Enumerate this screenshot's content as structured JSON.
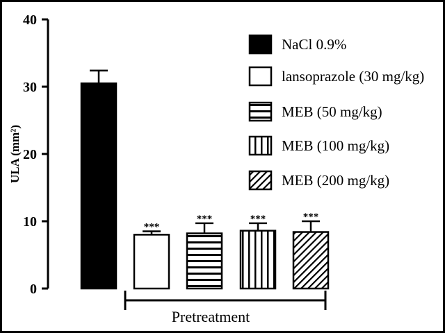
{
  "chart_data": {
    "type": "bar",
    "ylabel": "ULA (mm²)",
    "ylim": [
      0,
      40
    ],
    "yticks": [
      "0",
      "10",
      "20",
      "30",
      "40"
    ],
    "group_label": "Pretreatment",
    "series": [
      {
        "name": "NaCl 0.9%",
        "value": 30.5,
        "error": 1.9,
        "pattern": "solid",
        "annotation": ""
      },
      {
        "name": "lansoprazole (30 mg/kg)",
        "value": 8.0,
        "error": 0.5,
        "pattern": "empty",
        "annotation": "***"
      },
      {
        "name": "MEB (50 mg/kg)",
        "value": 8.2,
        "error": 1.5,
        "pattern": "horizontal",
        "annotation": "***"
      },
      {
        "name": "MEB (100 mg/kg)",
        "value": 8.6,
        "error": 1.1,
        "pattern": "vertical",
        "annotation": "***"
      },
      {
        "name": "MEB (200 mg/kg)",
        "value": 8.4,
        "error": 1.6,
        "pattern": "diagonal",
        "annotation": "***"
      }
    ],
    "legend_position": "right",
    "grid": false
  }
}
